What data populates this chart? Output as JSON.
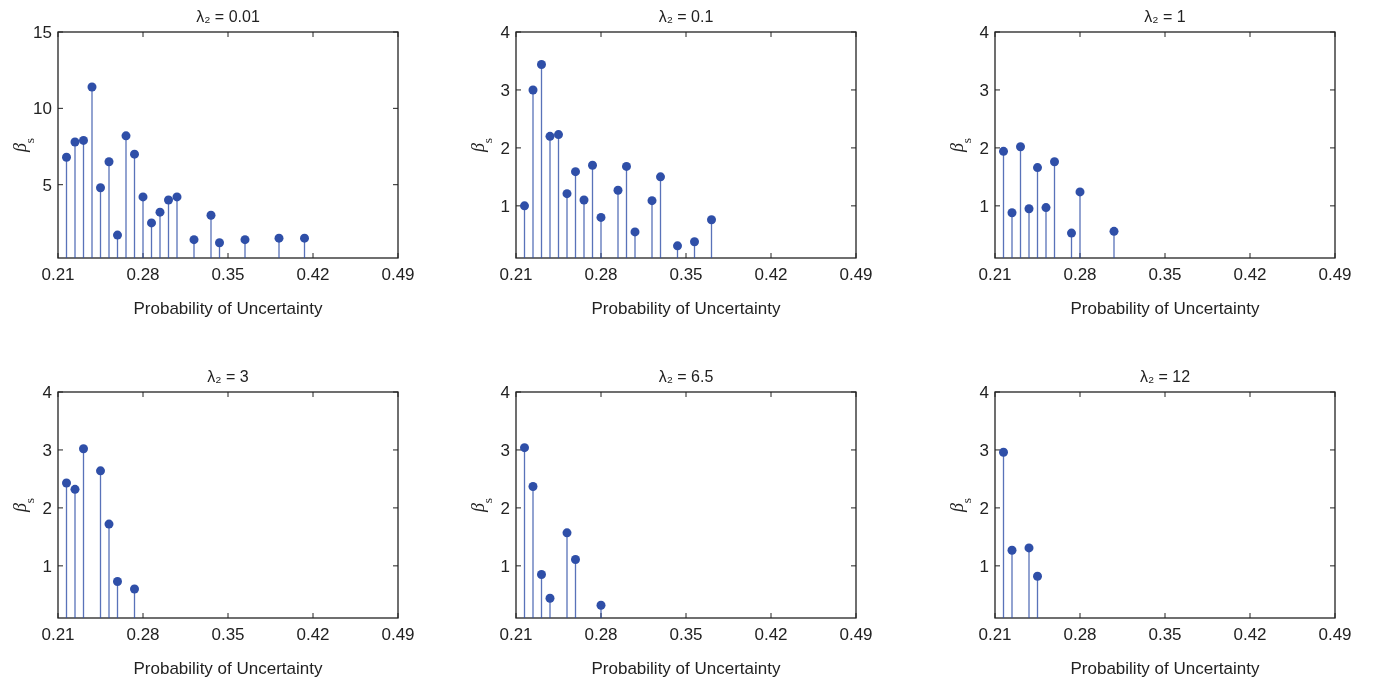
{
  "chart_data": [
    {
      "type": "lollipop",
      "title": "λ₂ = 0.01",
      "xlabel": "Probability of Uncertainty",
      "ylabel": "β$_{s}$",
      "color": "#2f4fa8",
      "marker": "circle",
      "xlim": [
        0.21,
        0.49
      ],
      "xticks": [
        0.21,
        0.28,
        0.35,
        0.42,
        0.49
      ],
      "ylim": [
        0.2,
        15
      ],
      "yticks": [
        5,
        10,
        15
      ],
      "x": [
        0.217,
        0.224,
        0.231,
        0.238,
        0.245,
        0.252,
        0.259,
        0.266,
        0.273,
        0.28,
        0.287,
        0.294,
        0.301,
        0.308,
        0.322,
        0.336,
        0.343,
        0.364,
        0.392,
        0.413
      ],
      "values": [
        6.8,
        7.8,
        7.9,
        11.4,
        4.8,
        6.5,
        1.7,
        8.2,
        7.0,
        4.2,
        2.5,
        3.2,
        4.0,
        4.2,
        1.4,
        3.0,
        1.2,
        1.4,
        1.5,
        1.5
      ]
    },
    {
      "type": "lollipop",
      "title": "λ₂ = 0.1",
      "xlabel": "Probability of Uncertainty",
      "ylabel": "β$_{s}$",
      "color": "#2f4fa8",
      "marker": "circle",
      "xlim": [
        0.21,
        0.49
      ],
      "xticks": [
        0.21,
        0.28,
        0.35,
        0.42,
        0.49
      ],
      "ylim": [
        0.1,
        4
      ],
      "yticks": [
        1,
        2,
        3,
        4
      ],
      "x": [
        0.217,
        0.224,
        0.231,
        0.238,
        0.245,
        0.252,
        0.259,
        0.266,
        0.273,
        0.28,
        0.294,
        0.301,
        0.308,
        0.322,
        0.329,
        0.343,
        0.357,
        0.371
      ],
      "values": [
        1.0,
        3.0,
        3.44,
        2.2,
        2.23,
        1.21,
        1.59,
        1.1,
        1.7,
        0.8,
        1.27,
        1.68,
        0.55,
        1.09,
        1.5,
        0.31,
        0.38,
        0.76
      ]
    },
    {
      "type": "lollipop",
      "title": "λ₂ = 1",
      "xlabel": "Probability of Uncertainty",
      "ylabel": "β$_{s}$",
      "color": "#2f4fa8",
      "marker": "circle",
      "xlim": [
        0.21,
        0.49
      ],
      "xticks": [
        0.21,
        0.28,
        0.35,
        0.42,
        0.49
      ],
      "ylim": [
        0.1,
        4
      ],
      "yticks": [
        1,
        2,
        3,
        4
      ],
      "x": [
        0.217,
        0.224,
        0.231,
        0.238,
        0.245,
        0.252,
        0.259,
        0.273,
        0.28,
        0.308
      ],
      "values": [
        1.94,
        0.88,
        2.02,
        0.95,
        1.66,
        0.97,
        1.76,
        0.53,
        1.24,
        0.56
      ]
    },
    {
      "type": "lollipop",
      "title": "λ₂ = 3",
      "xlabel": "Probability of Uncertainty",
      "ylabel": "β$_{s}$",
      "color": "#2f4fa8",
      "marker": "circle",
      "xlim": [
        0.21,
        0.49
      ],
      "xticks": [
        0.21,
        0.28,
        0.35,
        0.42,
        0.49
      ],
      "ylim": [
        0.1,
        4
      ],
      "yticks": [
        1,
        2,
        3,
        4
      ],
      "x": [
        0.217,
        0.224,
        0.231,
        0.245,
        0.252,
        0.259,
        0.273
      ],
      "values": [
        2.43,
        2.32,
        3.02,
        2.64,
        1.72,
        0.73,
        0.6
      ]
    },
    {
      "type": "lollipop",
      "title": "λ₂ = 6.5",
      "xlabel": "Probability of Uncertainty",
      "ylabel": "β$_{s}$",
      "color": "#2f4fa8",
      "marker": "circle",
      "xlim": [
        0.21,
        0.49
      ],
      "xticks": [
        0.21,
        0.28,
        0.35,
        0.42,
        0.49
      ],
      "ylim": [
        0.1,
        4
      ],
      "yticks": [
        1,
        2,
        3,
        4
      ],
      "x": [
        0.217,
        0.224,
        0.231,
        0.238,
        0.252,
        0.259,
        0.28
      ],
      "values": [
        3.04,
        2.37,
        0.85,
        0.44,
        1.57,
        1.11,
        0.32
      ]
    },
    {
      "type": "lollipop",
      "title": "λ₂ = 12",
      "xlabel": "Probability of Uncertainty",
      "ylabel": "β$_{s}$",
      "color": "#2f4fa8",
      "marker": "circle",
      "xlim": [
        0.21,
        0.49
      ],
      "xticks": [
        0.21,
        0.28,
        0.35,
        0.42,
        0.49
      ],
      "ylim": [
        0.1,
        4
      ],
      "yticks": [
        1,
        2,
        3,
        4
      ],
      "x": [
        0.217,
        0.224,
        0.238,
        0.245
      ],
      "values": [
        2.96,
        1.27,
        1.31,
        0.82
      ]
    }
  ]
}
